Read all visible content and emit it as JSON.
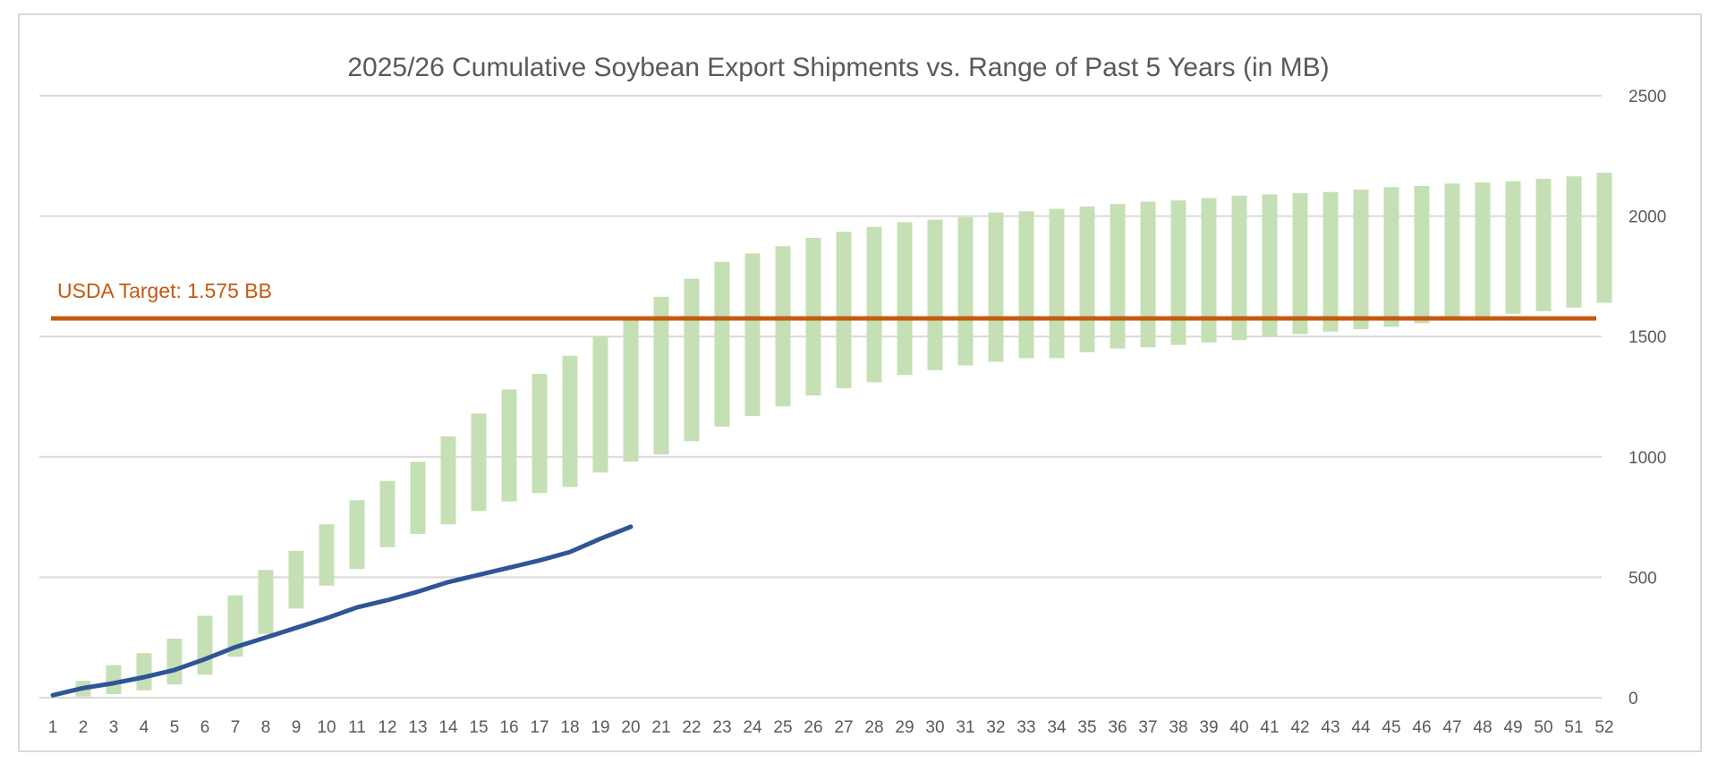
{
  "chart_data": {
    "type": "bar",
    "title": "2025/26 Cumulative Soybean Export Shipments vs. Range of Past 5 Years (in MB)",
    "xlabel": "",
    "ylabel": "",
    "ylim": [
      0,
      2500
    ],
    "yticks": [
      "0",
      "500",
      "1000",
      "1500",
      "2000",
      "2500"
    ],
    "y_axis_side": "right",
    "grid": true,
    "legend": "none",
    "categories": [
      "1",
      "2",
      "3",
      "4",
      "5",
      "6",
      "7",
      "8",
      "9",
      "10",
      "11",
      "12",
      "13",
      "14",
      "15",
      "16",
      "17",
      "18",
      "19",
      "20",
      "21",
      "22",
      "23",
      "24",
      "25",
      "26",
      "27",
      "28",
      "29",
      "30",
      "31",
      "32",
      "33",
      "34",
      "35",
      "36",
      "37",
      "38",
      "39",
      "40",
      "41",
      "42",
      "43",
      "44",
      "45",
      "46",
      "47",
      "48",
      "49",
      "50",
      "51",
      "52"
    ],
    "range_series": {
      "color": "#c5e0b4",
      "low": [
        0,
        5,
        15,
        30,
        55,
        95,
        170,
        265,
        370,
        465,
        535,
        625,
        680,
        720,
        775,
        815,
        850,
        875,
        935,
        980,
        1010,
        1065,
        1125,
        1170,
        1210,
        1255,
        1285,
        1310,
        1340,
        1360,
        1380,
        1395,
        1410,
        1410,
        1435,
        1450,
        1455,
        1465,
        1475,
        1485,
        1500,
        1510,
        1520,
        1530,
        1540,
        1555,
        1570,
        1585,
        1595,
        1605,
        1620,
        1640
      ],
      "high": [
        0,
        70,
        135,
        185,
        245,
        340,
        425,
        530,
        610,
        720,
        820,
        900,
        980,
        1085,
        1180,
        1280,
        1345,
        1420,
        1500,
        1575,
        1665,
        1740,
        1810,
        1845,
        1875,
        1910,
        1935,
        1955,
        1975,
        1985,
        1995,
        2015,
        2020,
        2030,
        2040,
        2050,
        2060,
        2065,
        2075,
        2085,
        2090,
        2095,
        2100,
        2110,
        2120,
        2125,
        2135,
        2140,
        2145,
        2155,
        2165,
        2180
      ]
    },
    "line_series": {
      "color": "#2f5597",
      "values": [
        10,
        40,
        60,
        85,
        115,
        160,
        210,
        250,
        290,
        330,
        375,
        405,
        440,
        480,
        510,
        540,
        570,
        605,
        660,
        710
      ]
    },
    "target_line": {
      "value": 1575,
      "label": "USDA Target: 1.575 BB",
      "color": "#c55a11"
    }
  }
}
